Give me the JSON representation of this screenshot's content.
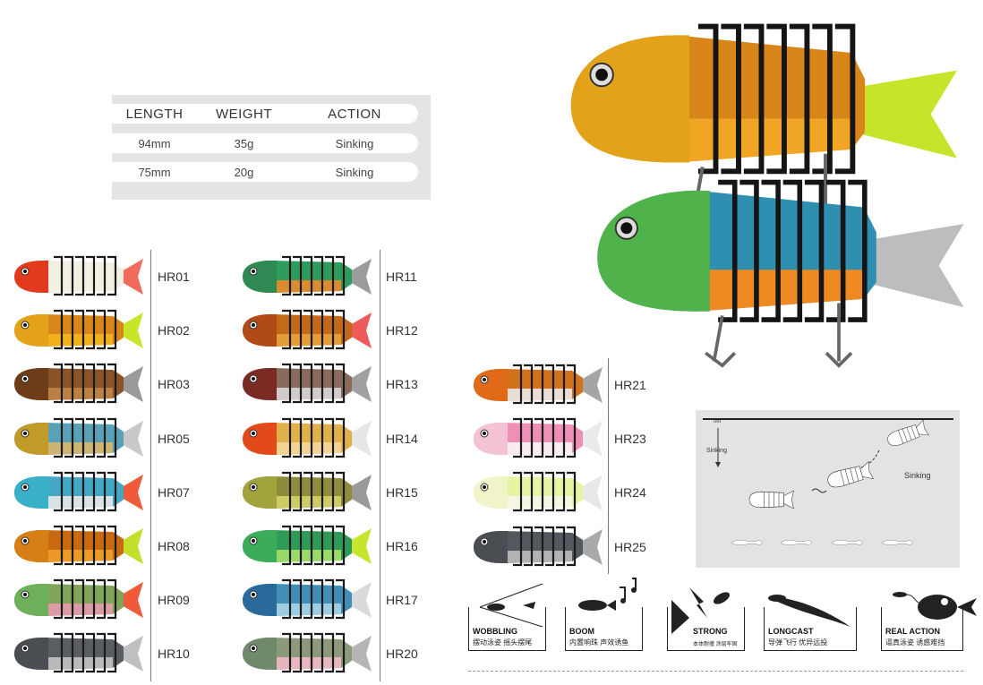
{
  "spec_table": {
    "headers": [
      "LENGTH",
      "WEIGHT",
      "ACTION"
    ],
    "rows": [
      [
        "94mm",
        "35g",
        "Sinking"
      ],
      [
        "75mm",
        "20g",
        "Sinking"
      ]
    ]
  },
  "columns": [
    {
      "codes": [
        "HR01",
        "HR02",
        "HR03",
        "HR05",
        "HR07",
        "HR08",
        "HR09",
        "HR10"
      ]
    },
    {
      "codes": [
        "HR11",
        "HR12",
        "HR13",
        "HR14",
        "HR15",
        "HR16",
        "HR17",
        "HR20"
      ]
    },
    {
      "codes": [
        "HR21",
        "HR23",
        "HR24",
        "HR25"
      ]
    }
  ],
  "lure_colors": {
    "HR01": {
      "head": "#e23a1c",
      "body": "#f3efe2",
      "belly": "#f3efe2",
      "tail": "#f06b5c"
    },
    "HR02": {
      "head": "#e3a219",
      "body": "#d9861a",
      "belly": "#f3b51f",
      "tail": "#c9e52a"
    },
    "HR03": {
      "head": "#6d3d1a",
      "body": "#8a5428",
      "belly": "#c28547",
      "tail": "#9a9a9a"
    },
    "HR05": {
      "head": "#c19a2a",
      "body": "#5aa0b7",
      "belly": "#d9b66a",
      "tail": "#c8c8c8"
    },
    "HR07": {
      "head": "#3ab0c8",
      "body": "#44a7c4",
      "belly": "#eaeaea",
      "tail": "#ee5a3a"
    },
    "HR08": {
      "head": "#d67f15",
      "body": "#c96a12",
      "belly": "#f0a02a",
      "tail": "#c3df2a"
    },
    "HR09": {
      "head": "#6fb05a",
      "body": "#7fa45a",
      "belly": "#e89aae",
      "tail": "#ee5a3a"
    },
    "HR10": {
      "head": "#4a4d52",
      "body": "#5a5d62",
      "belly": "#c4c4c4",
      "tail": "#bfbfbf"
    },
    "HR11": {
      "head": "#2e8a52",
      "body": "#2f9b5c",
      "belly": "#ee8a2a",
      "tail": "#9c9c9c"
    },
    "HR12": {
      "head": "#b04a18",
      "body": "#c26a1a",
      "belly": "#e8a23a",
      "tail": "#ef5a5a"
    },
    "HR13": {
      "head": "#7a2c24",
      "body": "#8a6a5c",
      "belly": "#d7d7d7",
      "tail": "#a0a0a0"
    },
    "HR14": {
      "head": "#e24a1a",
      "body": "#e0b04a",
      "belly": "#f4d79a",
      "tail": "#e6e6e6"
    },
    "HR15": {
      "head": "#a1a33c",
      "body": "#8e8c3a",
      "belly": "#d5d06a",
      "tail": "#9a9a9a"
    },
    "HR16": {
      "head": "#3bad5a",
      "body": "#2f9b58",
      "belly": "#a6e06a",
      "tail": "#c5e52f"
    },
    "HR17": {
      "head": "#2a6a9a",
      "body": "#3f8fb8",
      "belly": "#a7d4e6",
      "tail": "#dadada"
    },
    "HR20": {
      "head": "#6f8a6a",
      "body": "#8d9a7a",
      "belly": "#f0b8c5",
      "tail": "#b5b5b5"
    },
    "HR21": {
      "head": "#e06a18",
      "body": "#d1731a",
      "belly": "#eaeaea",
      "tail": "#a5a5a5"
    },
    "HR23": {
      "head": "#f3c2d4",
      "body": "#ef8fb8",
      "belly": "#f6f6f6",
      "tail": "#eaeaea"
    },
    "HR24": {
      "head": "#f1f4c8",
      "body": "#e5f3a3",
      "belly": "#f7f7ea",
      "tail": "#e8e8e8"
    },
    "HR25": {
      "head": "#4a4d52",
      "body": "#53585e",
      "belly": "#bdbdbd",
      "tail": "#a9a9a9"
    }
  },
  "hero": {
    "top": {
      "head": "#e2a21a",
      "body": "#d8851a",
      "belly": "#f0a524",
      "tail": "#c6e52a"
    },
    "bottom": {
      "head": "#4fb24a",
      "body": "#2f8fb0",
      "belly": "#ef8a22",
      "tail": "#bdbdbd"
    }
  },
  "diagram": {
    "depth_top": "0m",
    "depth_label": "Sinking",
    "action_label": "Sinking"
  },
  "features": [
    {
      "title": "WOBBLING",
      "subtitle": "摆动泳姿 摇头摆尾"
    },
    {
      "title": "BOOM",
      "subtitle": "内置响珠 声效诱鱼"
    },
    {
      "title": "STRONG",
      "subtitle": "本体耐撞 涂层牢固"
    },
    {
      "title": "LONGCAST",
      "subtitle": "导弹飞行 优异远投"
    },
    {
      "title": "REAL ACTION",
      "subtitle": "逼真泳姿 诱惑难挡"
    }
  ]
}
